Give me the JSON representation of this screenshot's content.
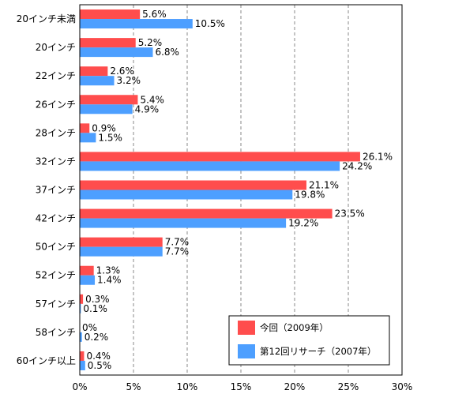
{
  "chart_data": {
    "type": "bar",
    "orientation": "horizontal",
    "categories": [
      "20インチ未満",
      "20インチ",
      "22インチ",
      "26インチ",
      "28インチ",
      "32インチ",
      "37インチ",
      "42インチ",
      "50インチ",
      "52インチ",
      "57インチ",
      "58インチ",
      "60インチ以上"
    ],
    "series": [
      {
        "name": "今回（2009年）",
        "color": "#ff4d4d",
        "values": [
          5.6,
          5.2,
          2.6,
          5.4,
          0.9,
          26.1,
          21.1,
          23.5,
          7.7,
          1.3,
          0.3,
          0,
          0.4
        ],
        "labels": [
          "5.6%",
          "5.2%",
          "2.6%",
          "5.4%",
          "0.9%",
          "26.1%",
          "21.1%",
          "23.5%",
          "7.7%",
          "1.3%",
          "0.3%",
          "0%",
          "0.4%"
        ]
      },
      {
        "name": "第12回リサーチ（2007年）",
        "color": "#4d9fff",
        "values": [
          10.5,
          6.8,
          3.2,
          4.9,
          1.5,
          24.2,
          19.8,
          19.2,
          7.7,
          1.4,
          0.1,
          0.2,
          0.5
        ],
        "labels": [
          "10.5%",
          "6.8%",
          "3.2%",
          "4.9%",
          "1.5%",
          "24.2%",
          "19.8%",
          "19.2%",
          "7.7%",
          "1.4%",
          "0.1%",
          "0.2%",
          "0.5%"
        ]
      }
    ],
    "xlim": [
      0,
      30
    ],
    "xticks": [
      0,
      5,
      10,
      15,
      20,
      25,
      30
    ],
    "xtick_labels": [
      "0%",
      "5%",
      "10%",
      "15%",
      "20%",
      "25%",
      "30%"
    ],
    "grid": "vertical dashed",
    "legend_position": "bottom-right",
    "title": "",
    "xlabel": "",
    "ylabel": ""
  }
}
